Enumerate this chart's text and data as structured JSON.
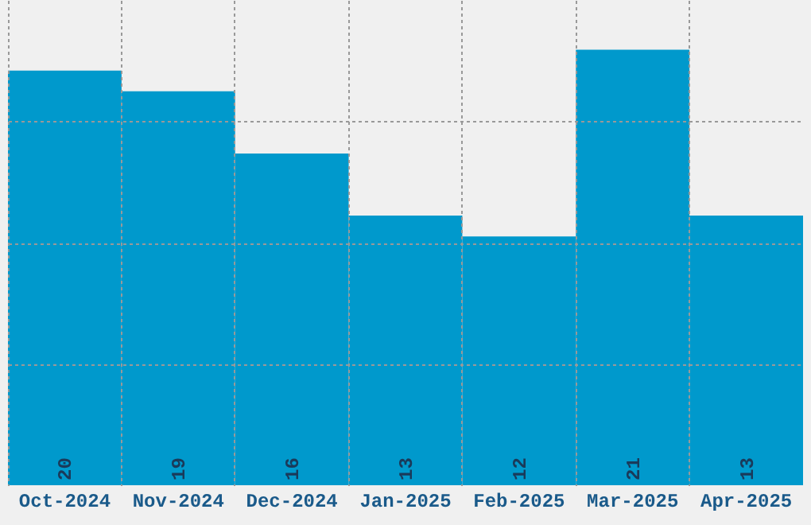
{
  "chart_data": {
    "type": "bar",
    "categories": [
      "Oct-2024",
      "Nov-2024",
      "Dec-2024",
      "Jan-2025",
      "Feb-2025",
      "Mar-2025",
      "Apr-2025"
    ],
    "values": [
      20,
      19,
      16,
      13,
      12,
      21,
      13
    ],
    "color": "#0099cc",
    "ylim": [
      0,
      23.4
    ],
    "yticks": [
      {
        "value": 5.85,
        "label": null
      },
      {
        "value": 11.7,
        "label": null
      },
      {
        "value": 17.55,
        "label": null
      }
    ],
    "tick_labels": "x",
    "grid": true,
    "data_labels": true
  }
}
